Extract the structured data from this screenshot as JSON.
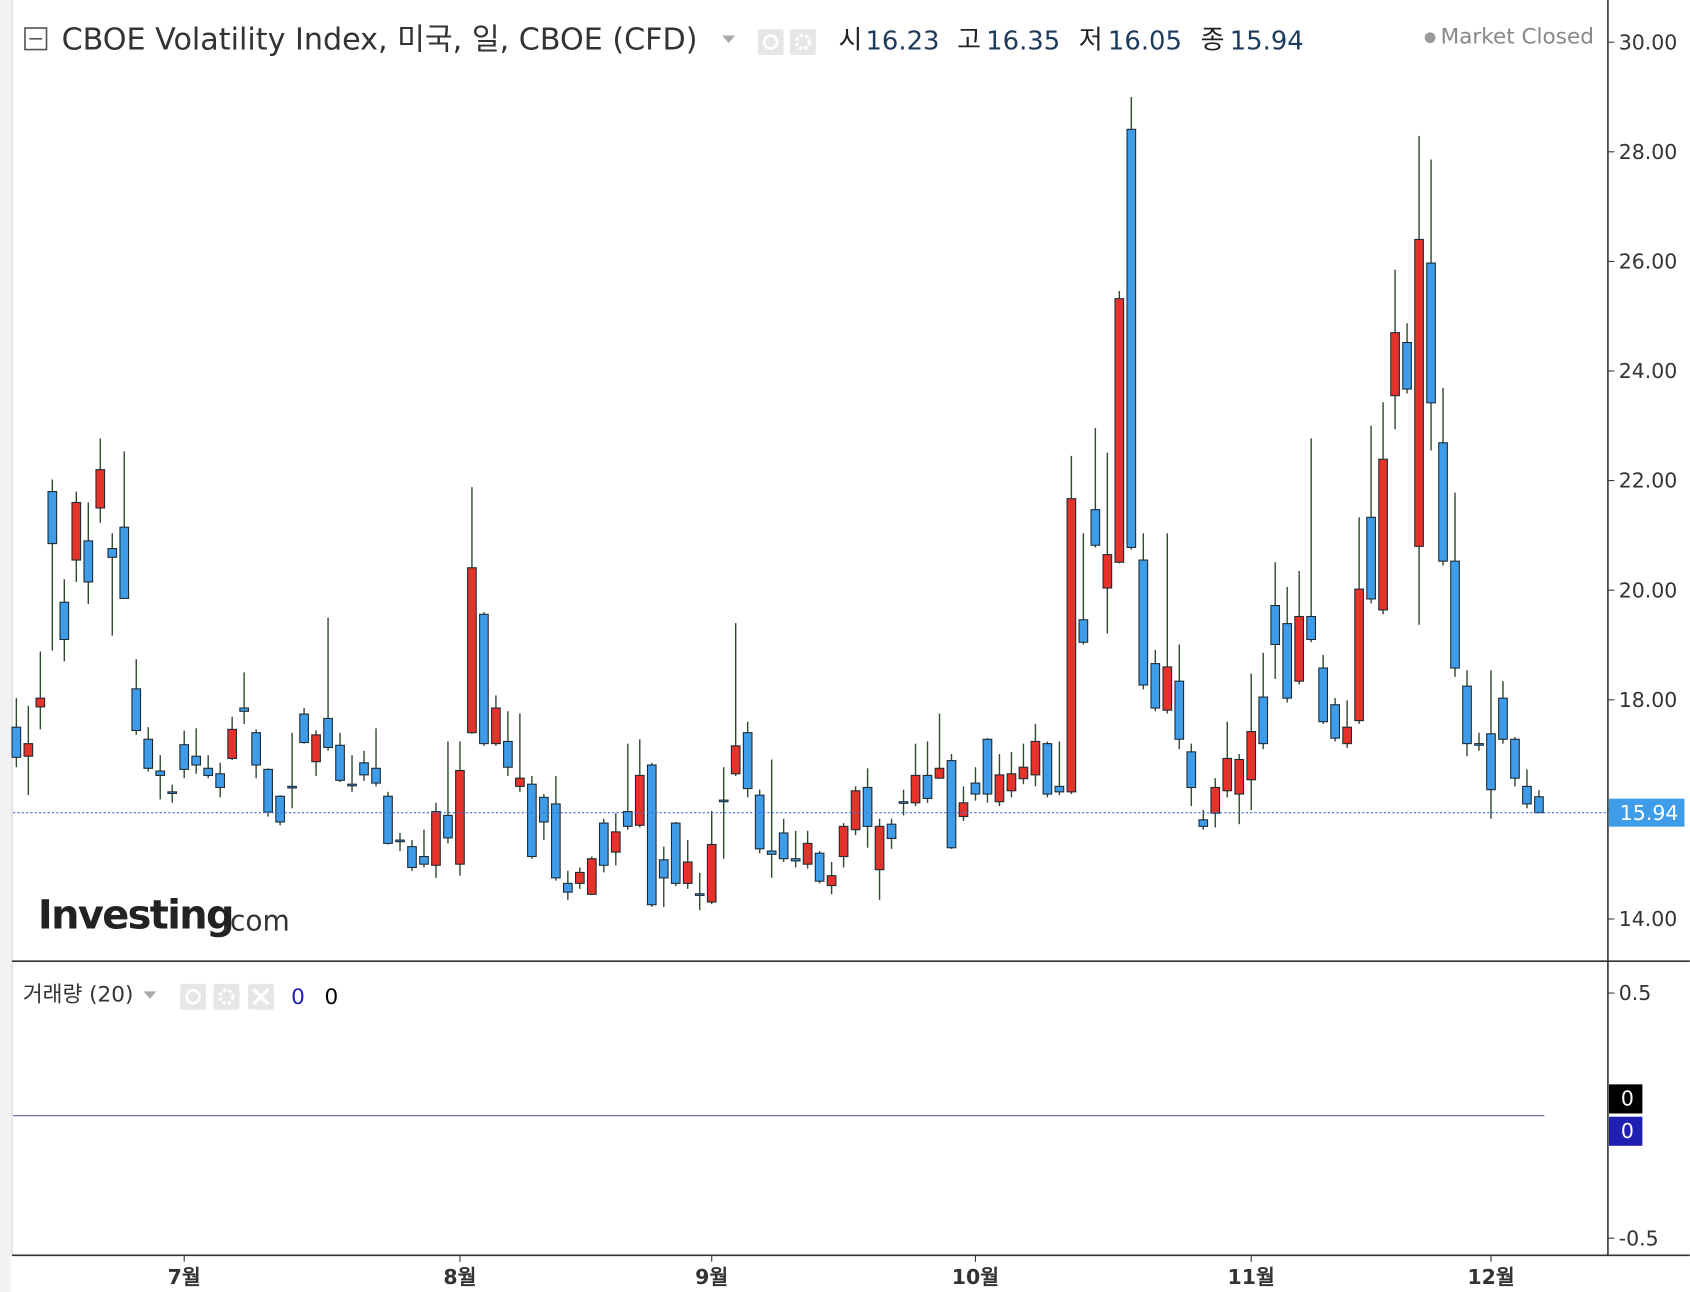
{
  "chart_data": [
    {
      "type": "candlestick",
      "title": "CBOE Volatility Index, 미국, 일, CBOE (CFD)",
      "ohlc_labels": [
        "시",
        "고",
        "저",
        "종"
      ],
      "status": "Market Closed",
      "watermark": {
        "brand": "Investing",
        "suffix": ".com"
      },
      "up_color": "#e5322a",
      "down_color": "#3e9ce9",
      "wick_color": "#2f4a2c",
      "grid": false,
      "ylim": [
        13.23,
        30.77
      ],
      "yticks": [
        {
          "value": 30,
          "label": "30.00"
        },
        {
          "value": 28,
          "label": "28.00"
        },
        {
          "value": 26,
          "label": "26.00"
        },
        {
          "value": 24,
          "label": "24.00"
        },
        {
          "value": 22,
          "label": "22.00"
        },
        {
          "value": 20,
          "label": "20.00"
        },
        {
          "value": 18,
          "label": "18.00"
        },
        {
          "value": 16,
          "label": "16.00"
        },
        {
          "value": 14,
          "label": "14.00"
        }
      ],
      "categories": [
        null,
        null,
        null,
        null,
        null,
        null,
        null,
        null,
        null,
        null,
        null,
        null,
        null,
        null,
        "7월",
        null,
        null,
        null,
        null,
        null,
        null,
        null,
        null,
        null,
        null,
        null,
        null,
        null,
        null,
        null,
        null,
        null,
        null,
        null,
        null,
        null,
        null,
        "8월",
        null,
        null,
        null,
        null,
        null,
        null,
        null,
        null,
        null,
        null,
        null,
        null,
        null,
        null,
        null,
        null,
        null,
        null,
        null,
        null,
        "9월",
        null,
        null,
        null,
        null,
        null,
        null,
        null,
        null,
        null,
        null,
        null,
        null,
        null,
        null,
        null,
        null,
        null,
        null,
        null,
        null,
        null,
        "10월",
        null,
        null,
        null,
        null,
        null,
        null,
        null,
        null,
        null,
        null,
        null,
        null,
        null,
        null,
        null,
        null,
        null,
        null,
        null,
        null,
        null,
        null,
        "11월",
        null,
        null,
        null,
        null,
        null,
        null,
        null,
        null,
        null,
        null,
        null,
        null,
        null,
        null,
        null,
        null,
        null,
        null,
        null,
        "12월",
        null,
        null,
        null,
        null
      ],
      "open": [
        17.5,
        16.97,
        17.87,
        21.8,
        19.78,
        20.55,
        20.9,
        21.5,
        20.76,
        21.15,
        18.2,
        17.28,
        16.7,
        16.32,
        17.18,
        16.97,
        16.75,
        16.65,
        16.93,
        17.85,
        17.4,
        16.73,
        16.24,
        16.42,
        17.74,
        16.87,
        17.66,
        17.17,
        16.46,
        16.85,
        16.75,
        16.24,
        15.44,
        15.32,
        15.14,
        14.98,
        15.89,
        15.0,
        17.4,
        19.56,
        17.2,
        17.24,
        16.42,
        16.46,
        16.22,
        16.1,
        14.65,
        14.65,
        14.45,
        15.75,
        15.22,
        15.96,
        15.71,
        16.81,
        15.08,
        15.75,
        14.65,
        14.46,
        14.31,
        16.17,
        16.65,
        17.4,
        16.26,
        15.24,
        15.57,
        15.1,
        15.0,
        15.2,
        14.61,
        15.14,
        15.63,
        16.4,
        14.9,
        15.73,
        16.14,
        16.12,
        16.62,
        16.57,
        16.89,
        15.87,
        16.48,
        17.28,
        16.14,
        16.34,
        16.56,
        16.63,
        17.2,
        16.42,
        16.32,
        19.46,
        21.47,
        20.04,
        20.51,
        28.41,
        20.55,
        18.66,
        17.81,
        18.34,
        17.05,
        15.81,
        15.93,
        16.34,
        16.28,
        16.54,
        18.05,
        19.72,
        19.39,
        18.34,
        19.52,
        18.58,
        17.91,
        17.2,
        17.62,
        21.33,
        19.64,
        23.55,
        24.52,
        20.8,
        25.97,
        22.69,
        20.53,
        18.25,
        17.2,
        17.38,
        18.03,
        17.28,
        16.42,
        16.23
      ],
      "high": [
        18.03,
        17.89,
        18.88,
        22.02,
        20.2,
        21.8,
        21.6,
        22.77,
        21.04,
        22.53,
        18.74,
        17.5,
        16.99,
        16.45,
        17.44,
        17.48,
        16.99,
        16.85,
        17.69,
        18.5,
        17.46,
        16.75,
        16.26,
        17.4,
        17.85,
        17.44,
        19.5,
        17.4,
        16.99,
        17.07,
        17.48,
        16.32,
        15.57,
        15.44,
        15.63,
        16.12,
        17.24,
        17.24,
        21.88,
        19.6,
        18.08,
        17.79,
        17.75,
        16.61,
        16.28,
        16.61,
        14.88,
        14.94,
        15.14,
        15.83,
        15.93,
        17.2,
        17.28,
        16.85,
        15.32,
        15.77,
        15.44,
        14.84,
        15.97,
        16.77,
        19.4,
        17.6,
        16.36,
        16.91,
        15.83,
        15.61,
        15.61,
        15.24,
        15.04,
        15.75,
        16.42,
        16.75,
        15.83,
        15.83,
        16.36,
        17.2,
        17.24,
        17.75,
        17.01,
        16.42,
        16.77,
        17.3,
        17.01,
        17.05,
        17.2,
        17.56,
        17.24,
        17.24,
        22.45,
        21.04,
        22.96,
        22.51,
        25.46,
        29.0,
        21.04,
        18.91,
        21.04,
        19.01,
        17.2,
        15.99,
        16.57,
        17.6,
        17.01,
        18.48,
        18.86,
        20.51,
        20.06,
        20.35,
        22.77,
        18.82,
        18.03,
        17.99,
        21.33,
        23.0,
        23.43,
        25.85,
        24.87,
        28.29,
        27.86,
        23.69,
        21.78,
        18.54,
        17.4,
        18.54,
        18.34,
        17.32,
        16.73,
        16.35
      ],
      "low": [
        16.77,
        16.26,
        17.46,
        18.9,
        18.7,
        20.15,
        19.75,
        21.23,
        19.17,
        19.84,
        17.36,
        16.69,
        16.18,
        16.12,
        16.57,
        16.65,
        16.57,
        16.22,
        16.9,
        17.56,
        16.57,
        15.87,
        15.71,
        16.02,
        17.2,
        16.61,
        17.07,
        16.5,
        16.32,
        16.52,
        16.42,
        15.36,
        15.24,
        14.88,
        14.94,
        14.75,
        15.38,
        14.79,
        17.38,
        17.16,
        17.16,
        16.61,
        16.32,
        15.1,
        15.44,
        14.7,
        14.35,
        14.55,
        14.44,
        14.85,
        14.98,
        15.63,
        15.67,
        14.22,
        14.22,
        14.6,
        14.55,
        14.16,
        14.27,
        15.1,
        16.61,
        16.22,
        15.2,
        14.75,
        15.04,
        14.94,
        14.92,
        14.65,
        14.45,
        14.94,
        15.53,
        15.3,
        14.35,
        15.28,
        15.89,
        16.06,
        16.12,
        16.56,
        15.28,
        15.79,
        16.16,
        16.12,
        16.06,
        16.22,
        16.46,
        16.42,
        16.22,
        16.26,
        16.28,
        19.01,
        20.78,
        19.21,
        20.49,
        20.74,
        18.19,
        17.79,
        17.75,
        17.1,
        16.06,
        15.63,
        15.67,
        16.22,
        15.73,
        15.99,
        17.1,
        18.38,
        17.95,
        18.28,
        19.05,
        17.56,
        17.24,
        17.12,
        17.56,
        19.76,
        19.56,
        22.94,
        23.59,
        19.37,
        22.55,
        20.45,
        18.42,
        16.97,
        17.07,
        15.83,
        17.2,
        16.42,
        16.02,
        16.05
      ],
      "close": [
        16.95,
        17.2,
        18.03,
        20.85,
        19.1,
        21.6,
        20.15,
        22.2,
        20.6,
        19.85,
        17.44,
        16.75,
        16.62,
        16.3,
        16.73,
        16.81,
        16.62,
        16.4,
        17.46,
        17.79,
        16.81,
        15.95,
        15.77,
        16.4,
        17.22,
        17.36,
        17.13,
        16.53,
        16.43,
        16.63,
        16.48,
        15.38,
        15.42,
        14.94,
        15.0,
        15.96,
        15.48,
        16.71,
        20.41,
        17.2,
        17.85,
        16.77,
        16.57,
        15.14,
        15.77,
        14.75,
        14.49,
        14.85,
        15.1,
        14.98,
        15.59,
        15.69,
        16.62,
        14.26,
        14.75,
        14.65,
        15.04,
        14.44,
        15.36,
        16.15,
        17.16,
        16.38,
        15.28,
        15.18,
        15.1,
        15.06,
        15.38,
        14.69,
        14.79,
        15.69,
        16.34,
        15.69,
        15.69,
        15.47,
        16.12,
        16.62,
        16.2,
        16.75,
        15.3,
        16.12,
        16.28,
        16.28,
        16.63,
        16.65,
        16.77,
        17.24,
        16.28,
        16.32,
        21.67,
        19.05,
        20.82,
        20.65,
        25.32,
        20.78,
        18.27,
        17.85,
        18.6,
        17.28,
        16.4,
        15.69,
        16.4,
        16.93,
        16.91,
        17.42,
        17.2,
        19.01,
        18.03,
        19.52,
        19.1,
        17.6,
        17.3,
        17.5,
        20.02,
        19.84,
        22.39,
        24.7,
        23.67,
        26.4,
        23.42,
        20.53,
        18.58,
        17.2,
        17.18,
        16.36,
        17.28,
        16.57,
        16.1,
        15.94
      ]
    },
    {
      "type": "line",
      "title": "거래량 (20)",
      "ylim": [
        -0.57,
        0.63
      ],
      "yticks": [
        0.5,
        -0.5
      ],
      "series": [
        {
          "color": "#000000",
          "values": [
            0,
            0,
            0,
            0,
            0,
            0,
            0,
            0,
            0,
            0,
            0,
            0,
            0,
            0,
            0,
            0,
            0,
            0,
            0,
            0,
            0,
            0,
            0,
            0,
            0,
            0,
            0,
            0,
            0,
            0,
            0,
            0,
            0,
            0,
            0,
            0,
            0,
            0,
            0,
            0,
            0,
            0,
            0,
            0,
            0,
            0,
            0,
            0,
            0,
            0,
            0,
            0,
            0,
            0,
            0,
            0,
            0,
            0,
            0,
            0,
            0,
            0,
            0,
            0,
            0,
            0,
            0,
            0,
            0,
            0,
            0,
            0,
            0,
            0,
            0,
            0,
            0,
            0,
            0,
            0,
            0,
            0,
            0,
            0,
            0,
            0,
            0,
            0,
            0,
            0,
            0,
            0,
            0,
            0,
            0,
            0,
            0,
            0,
            0,
            0,
            0,
            0,
            0,
            0,
            0,
            0,
            0,
            0,
            0,
            0,
            0,
            0,
            0,
            0,
            0,
            0,
            0,
            0,
            0,
            0,
            0,
            0,
            0,
            0,
            0,
            0,
            0,
            0
          ]
        },
        {
          "color": "#1f1fb0",
          "values": [
            0,
            0,
            0,
            0,
            0,
            0,
            0,
            0,
            0,
            0,
            0,
            0,
            0,
            0,
            0,
            0,
            0,
            0,
            0,
            0,
            0,
            0,
            0,
            0,
            0,
            0,
            0,
            0,
            0,
            0,
            0,
            0,
            0,
            0,
            0,
            0,
            0,
            0,
            0,
            0,
            0,
            0,
            0,
            0,
            0,
            0,
            0,
            0,
            0,
            0,
            0,
            0,
            0,
            0,
            0,
            0,
            0,
            0,
            0,
            0,
            0,
            0,
            0,
            0,
            0,
            0,
            0,
            0,
            0,
            0,
            0,
            0,
            0,
            0,
            0,
            0,
            0,
            0,
            0,
            0,
            0,
            0,
            0,
            0,
            0,
            0,
            0,
            0,
            0,
            0,
            0,
            0,
            0,
            0,
            0,
            0,
            0,
            0,
            0,
            0,
            0,
            0,
            0,
            0,
            0,
            0,
            0,
            0,
            0,
            0,
            0,
            0,
            0,
            0,
            0,
            0,
            0,
            0,
            0,
            0,
            0,
            0,
            0,
            0,
            0,
            0,
            0,
            0
          ]
        }
      ]
    }
  ]
}
